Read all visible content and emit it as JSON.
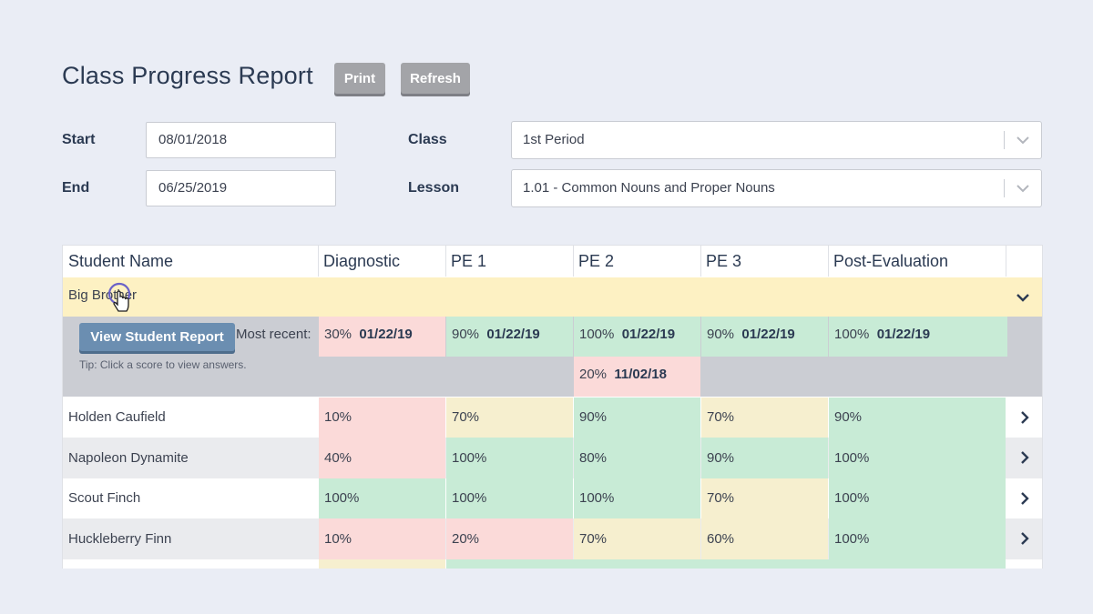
{
  "page": {
    "title": "Class Progress Report",
    "print_label": "Print",
    "refresh_label": "Refresh"
  },
  "filters": {
    "start_label": "Start",
    "start_value": "08/01/2018",
    "end_label": "End",
    "end_value": "06/25/2019",
    "class_label": "Class",
    "class_value": "1st Period",
    "lesson_label": "Lesson",
    "lesson_value": "1.01 - Common Nouns and Proper Nouns"
  },
  "table": {
    "headers": [
      "Student Name",
      "Diagnostic",
      "PE 1",
      "PE 2",
      "PE 3",
      "Post-Evaluation"
    ],
    "expanded": {
      "name": "Big Brother",
      "view_report_label": "View Student Report",
      "most_recent_label": "Most recent:",
      "tip": "Tip: Click a score to view answers.",
      "recent": [
        {
          "score": "30%",
          "date": "01/22/19"
        },
        {
          "score": "90%",
          "date": "01/22/19"
        },
        {
          "score": "100%",
          "date": "01/22/19"
        },
        {
          "score": "90%",
          "date": "01/22/19"
        },
        {
          "score": "100%",
          "date": "01/22/19"
        }
      ],
      "extra_pe2": {
        "score": "20%",
        "date": "11/02/18"
      }
    },
    "rows": [
      {
        "name": "Holden Caufield",
        "scores": [
          "10%",
          "70%",
          "90%",
          "70%",
          "90%"
        ]
      },
      {
        "name": "Napoleon Dynamite",
        "scores": [
          "40%",
          "100%",
          "80%",
          "90%",
          "100%"
        ]
      },
      {
        "name": "Scout Finch",
        "scores": [
          "100%",
          "100%",
          "100%",
          "70%",
          "100%"
        ]
      },
      {
        "name": "Huckleberry Finn",
        "scores": [
          "10%",
          "20%",
          "70%",
          "60%",
          "100%"
        ]
      }
    ]
  },
  "colors": {
    "pink": "#fbdad9",
    "green": "#c8ebd6",
    "yellow": "#f6efcf",
    "highlight_row": "#fdf1c3",
    "accent_button": "#6b8eb1"
  }
}
